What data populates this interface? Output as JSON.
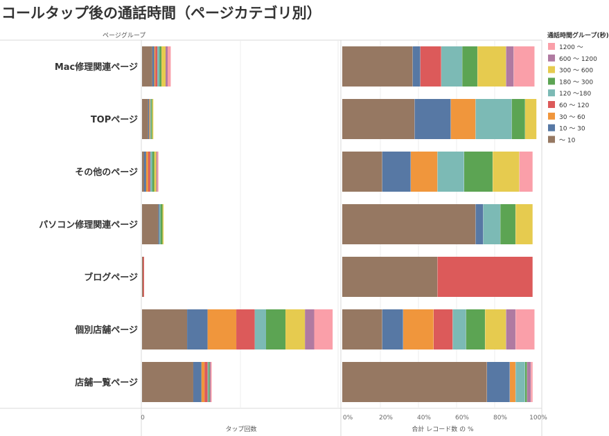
{
  "chart_data": {
    "type": "bar",
    "title": "コールタップ後の通話時間（ページカテゴリ別）",
    "row_header": "ページグループ",
    "categories": [
      "Mac修理関連ページ",
      "TOPページ",
      "その他のページ",
      "パソコン修理関連ページ",
      "ブログページ",
      "個別店舗ページ",
      "店舗一覧ページ"
    ],
    "legend": {
      "title": "通話時間グループ(秒)",
      "placement": "right",
      "order": [
        "1200 ～",
        "600 ～ 1200",
        "300 ～ 600",
        "180 ～ 300",
        "120 ～180",
        "60 ～ 120",
        "30 ～ 60",
        "10 ～ 30",
        "～ 10"
      ]
    },
    "stack_order": [
      "～ 10",
      "10 ～ 30",
      "30 ～ 60",
      "60 ～ 120",
      "120 ～180",
      "180 ～ 300",
      "300 ～ 600",
      "600 ～ 1200",
      "1200 ～"
    ],
    "colors": {
      "～ 10": "#967862",
      "10 ～ 30": "#5778a4",
      "30 ～ 60": "#f0963c",
      "60 ～ 120": "#dc5a5a",
      "120 ～180": "#7cbab5",
      "180 ～ 300": "#5ca453",
      "300 ～ 600": "#e6cb4f",
      "600 ～ 1200": "#b07aa1",
      "1200 ～": "#fa9fa9"
    },
    "panels": [
      {
        "name": "taps",
        "xlabel": "タップ回数",
        "ticks": [
          "0"
        ],
        "xlim": [
          0,
          96
        ],
        "series": [
          {
            "name": "～ 10",
            "values": [
              5,
              3,
              1,
              8,
              0.5,
              22,
              25
            ]
          },
          {
            "name": "10 ～ 30",
            "values": [
              1,
              0.5,
              1,
              0.5,
              0,
              10,
              4
            ]
          },
          {
            "name": "30 ～ 60",
            "values": [
              0.5,
              0.5,
              1,
              0,
              0,
              14,
              1.5
            ]
          },
          {
            "name": "60 ～ 120",
            "values": [
              1,
              0,
              1,
              0,
              0.5,
              9,
              1.5
            ]
          },
          {
            "name": "120 ～180",
            "values": [
              1,
              0.5,
              1,
              0.5,
              0,
              5.5,
              0.5
            ]
          },
          {
            "name": "180 ～ 300",
            "values": [
              1,
              0.5,
              1,
              1,
              0,
              9.5,
              0.5
            ]
          },
          {
            "name": "300 ～ 600",
            "values": [
              2,
              0.5,
              1,
              0.5,
              0,
              9.5,
              0
            ]
          },
          {
            "name": "600 ～ 1200",
            "values": [
              1,
              0,
              0.5,
              0,
              0,
              4.5,
              0.5
            ]
          },
          {
            "name": "1200 ～",
            "values": [
              1.5,
              0,
              0.5,
              0,
              0,
              9,
              0.5
            ]
          }
        ]
      },
      {
        "name": "percent",
        "xlabel": "合計 レコード数 の %",
        "ticks": [
          "0%",
          "20%",
          "40%",
          "60%",
          "80%",
          "100%"
        ],
        "xlim": [
          0,
          100
        ],
        "series": [
          {
            "name": "～ 10",
            "values": [
              37,
              38,
              21,
              70,
              50,
              21,
              76
            ]
          },
          {
            "name": "10 ～ 30",
            "values": [
              4,
              19,
              15,
              4,
              0,
              11,
              12
            ]
          },
          {
            "name": "30 ～ 60",
            "values": [
              0,
              13,
              14,
              0,
              0,
              16,
              3
            ]
          },
          {
            "name": "60 ～ 120",
            "values": [
              11,
              0,
              0,
              0,
              50,
              10,
              0
            ]
          },
          {
            "name": "120 ～180",
            "values": [
              11,
              19,
              14,
              9,
              0,
              7,
              5
            ]
          },
          {
            "name": "180 ～ 300",
            "values": [
              8,
              7,
              15,
              8,
              0,
              10,
              1
            ]
          },
          {
            "name": "300 ～ 600",
            "values": [
              15,
              6,
              14,
              9,
              0,
              11,
              0
            ]
          },
          {
            "name": "600 ～ 1200",
            "values": [
              4,
              0,
              0,
              0,
              0,
              5,
              2
            ]
          },
          {
            "name": "1200 ～",
            "values": [
              11,
              0,
              7,
              0,
              0,
              10,
              1
            ]
          }
        ]
      }
    ]
  }
}
